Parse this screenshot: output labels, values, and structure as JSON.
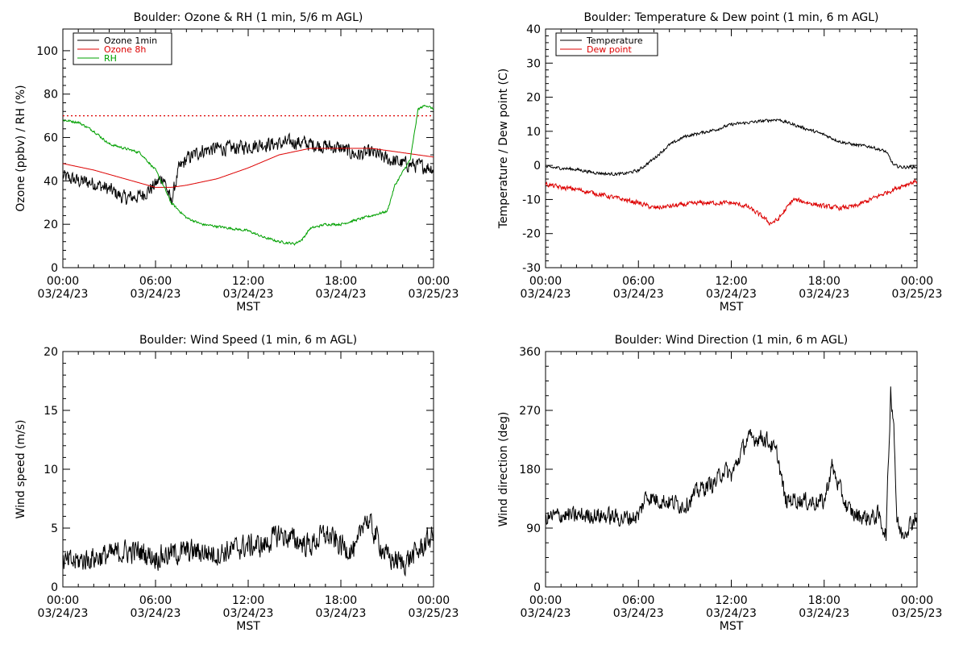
{
  "colors": {
    "ozone_1min": "#000000",
    "ozone_8h": "#dd0000",
    "rh": "#00a000",
    "temperature": "#000000",
    "dew_point": "#dd0000",
    "wind": "#000000",
    "background": "#ffffff"
  },
  "x_axis": {
    "ticks": [
      {
        "time": "00:00",
        "date": "03/24/23"
      },
      {
        "time": "06:00",
        "date": "03/24/23"
      },
      {
        "time": "12:00",
        "date": "03/24/23"
      },
      {
        "time": "18:00",
        "date": "03/24/23"
      },
      {
        "time": "00:00",
        "date": "03/25/23"
      }
    ],
    "label": "MST"
  },
  "chart_data": [
    {
      "type": "line",
      "title": "Boulder: Ozone & RH (1 min, 5/6 m AGL)",
      "ylabel": "Ozone (ppbv) / RH (%)",
      "ylim": [
        0,
        110
      ],
      "yticks": [
        0,
        20,
        40,
        60,
        80,
        100
      ],
      "xlim": [
        "2023-03-24 00:00",
        "2023-03-25 00:00"
      ],
      "xlabel": "MST",
      "legend_position": "top-left",
      "reference_line": {
        "y": 70,
        "style": "dotted",
        "color": "#dd0000"
      },
      "series": [
        {
          "name": "Ozone 1min",
          "color": "#000000",
          "noise": 3,
          "x_hours": [
            0,
            1,
            2,
            3,
            4,
            5,
            5.8,
            6.5,
            7,
            7.5,
            8,
            9,
            10,
            11,
            12,
            13,
            14,
            15,
            16,
            17,
            18,
            19,
            20,
            21,
            22,
            23,
            24
          ],
          "y": [
            42,
            40,
            39,
            36,
            32,
            33,
            37,
            42,
            30,
            45,
            50,
            54,
            55,
            55,
            56,
            57,
            57,
            58,
            57,
            56,
            55,
            52,
            53,
            50,
            48,
            47,
            46
          ]
        },
        {
          "name": "Ozone 8h",
          "color": "#dd0000",
          "noise": 0,
          "x_hours": [
            0,
            2,
            4,
            5,
            6,
            7,
            8,
            10,
            12,
            14,
            16,
            18,
            20,
            22,
            24
          ],
          "y": [
            48,
            45,
            41,
            39,
            37,
            37,
            38,
            41,
            46,
            52,
            55,
            55,
            55,
            53,
            51
          ]
        },
        {
          "name": "RH",
          "color": "#00a000",
          "noise": 0.5,
          "x_hours": [
            0,
            1,
            2,
            3,
            4,
            5,
            6,
            6.5,
            7,
            8,
            9,
            10,
            12,
            13,
            14,
            15,
            15.5,
            16,
            17,
            18,
            19,
            20,
            21,
            21.5,
            22,
            22.5,
            23,
            23.5,
            24
          ],
          "y": [
            68,
            67,
            63,
            57,
            55,
            53,
            45,
            38,
            30,
            23,
            20,
            19,
            17,
            14,
            12,
            11,
            13,
            18,
            20,
            20,
            22,
            24,
            26,
            38,
            44,
            50,
            73,
            75,
            73
          ]
        }
      ]
    },
    {
      "type": "line",
      "title": "Boulder: Temperature & Dew point (1 min, 6 m AGL)",
      "ylabel": "Temperature / Dew point (C)",
      "ylim": [
        -30,
        40
      ],
      "yticks": [
        -30,
        -20,
        -10,
        0,
        10,
        20,
        30,
        40
      ],
      "xlim": [
        "2023-03-24 00:00",
        "2023-03-25 00:00"
      ],
      "xlabel": "MST",
      "legend_position": "top-left",
      "series": [
        {
          "name": "Temperature",
          "color": "#000000",
          "noise": 0.4,
          "x_hours": [
            0,
            1,
            2,
            3,
            4,
            5,
            6,
            7,
            8,
            9,
            10,
            11,
            12,
            13,
            14,
            15,
            16,
            17,
            18,
            19,
            20,
            21,
            22,
            22.5,
            23,
            24
          ],
          "y": [
            -0.5,
            -0.8,
            -1.2,
            -2,
            -2.5,
            -2.5,
            -1.5,
            2,
            6,
            8.5,
            9.5,
            10.5,
            12,
            12.5,
            13,
            13.5,
            12,
            10.5,
            9,
            7,
            6,
            5.5,
            4,
            0,
            -0.5,
            -0.5
          ]
        },
        {
          "name": "Dew point",
          "color": "#dd0000",
          "noise": 0.6,
          "x_hours": [
            0,
            1,
            2,
            3,
            4,
            5,
            6,
            7,
            8,
            9,
            10,
            11,
            12,
            13,
            14,
            14.5,
            15,
            15.5,
            16,
            17,
            18,
            19,
            20,
            21,
            22,
            23,
            24
          ],
          "y": [
            -5.5,
            -6.5,
            -7,
            -8,
            -9,
            -10,
            -11,
            -12.5,
            -12,
            -11.5,
            -11,
            -11,
            -11,
            -12,
            -15,
            -17,
            -16,
            -13,
            -10,
            -11,
            -12,
            -12.5,
            -12,
            -10,
            -8,
            -6,
            -4.5
          ]
        }
      ]
    },
    {
      "type": "line",
      "title": "Boulder: Wind Speed (1 min, 6 m AGL)",
      "ylabel": "Wind speed (m/s)",
      "ylim": [
        0,
        20
      ],
      "yticks": [
        0,
        5,
        10,
        15,
        20
      ],
      "xlim": [
        "2023-03-24 00:00",
        "2023-03-25 00:00"
      ],
      "xlabel": "MST",
      "series": [
        {
          "color": "#000000",
          "noise": 0.9,
          "x_hours": [
            0,
            1,
            2,
            3,
            4,
            5,
            6,
            7,
            8,
            9,
            10,
            11,
            12,
            13,
            14,
            15,
            16,
            17,
            18,
            19,
            19.5,
            20,
            21,
            22,
            23,
            24
          ],
          "y": [
            2,
            2.2,
            2.5,
            2.7,
            3,
            3,
            2.5,
            2.8,
            3,
            3,
            2.8,
            3.2,
            3.5,
            3.5,
            4.5,
            4,
            3.5,
            4.5,
            3.5,
            3,
            6,
            5,
            2.5,
            2,
            3,
            4.5
          ]
        }
      ]
    },
    {
      "type": "line",
      "title": "Boulder: Wind Direction (1 min, 6 m AGL)",
      "ylabel": "Wind direction (deg)",
      "ylim": [
        0,
        360
      ],
      "yticks": [
        0,
        90,
        180,
        270,
        360
      ],
      "xlim": [
        "2023-03-24 00:00",
        "2023-03-25 00:00"
      ],
      "xlabel": "MST",
      "series": [
        {
          "color": "#000000",
          "noise": 12,
          "x_hours": [
            0,
            1,
            2,
            3,
            4,
            5,
            6,
            6.5,
            7,
            8,
            9,
            10,
            11,
            11.5,
            12,
            13,
            14,
            14.5,
            15,
            15.5,
            16,
            17,
            18,
            18.5,
            19,
            19.5,
            20,
            21,
            21.5,
            22,
            22.3,
            22.5,
            22.7,
            23,
            24
          ],
          "y": [
            105,
            110,
            108,
            110,
            108,
            105,
            108,
            140,
            135,
            130,
            125,
            150,
            160,
            180,
            170,
            225,
            230,
            220,
            200,
            130,
            135,
            130,
            130,
            185,
            150,
            120,
            110,
            105,
            110,
            80,
            300,
            250,
            100,
            80,
            110
          ]
        }
      ]
    }
  ]
}
